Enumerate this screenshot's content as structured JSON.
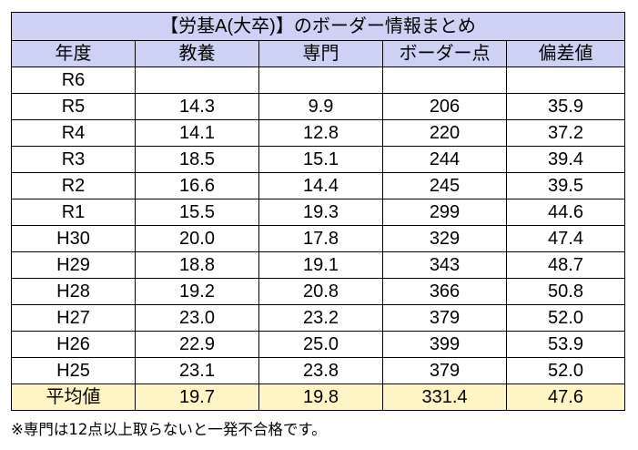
{
  "title": "【労基A(大卒)】のボーダー情報まとめ",
  "headers": [
    "年度",
    "教養",
    "専門",
    "ボーダー点",
    "偏差値"
  ],
  "rows": [
    [
      "R6",
      "",
      "",
      "",
      ""
    ],
    [
      "R5",
      "14.3",
      "9.9",
      "206",
      "35.9"
    ],
    [
      "R4",
      "14.1",
      "12.8",
      "220",
      "37.2"
    ],
    [
      "R3",
      "18.5",
      "15.1",
      "244",
      "39.4"
    ],
    [
      "R2",
      "16.6",
      "14.4",
      "245",
      "39.5"
    ],
    [
      "R1",
      "15.5",
      "19.3",
      "299",
      "44.6"
    ],
    [
      "H30",
      "20.0",
      "17.8",
      "329",
      "47.4"
    ],
    [
      "H29",
      "18.8",
      "19.1",
      "343",
      "48.7"
    ],
    [
      "H28",
      "19.2",
      "20.8",
      "366",
      "50.8"
    ],
    [
      "H27",
      "23.0",
      "23.2",
      "379",
      "52.0"
    ],
    [
      "H26",
      "22.9",
      "25.0",
      "399",
      "53.9"
    ],
    [
      "H25",
      "23.1",
      "23.8",
      "379",
      "52.0"
    ]
  ],
  "average": [
    "平均値",
    "19.7",
    "19.8",
    "331.4",
    "47.6"
  ],
  "note": "※専門は12点以上取らないと一発不合格です。",
  "colors": {
    "header_bg": "#cdd2f4",
    "average_bg": "#fff5c4",
    "border": "#000000"
  }
}
